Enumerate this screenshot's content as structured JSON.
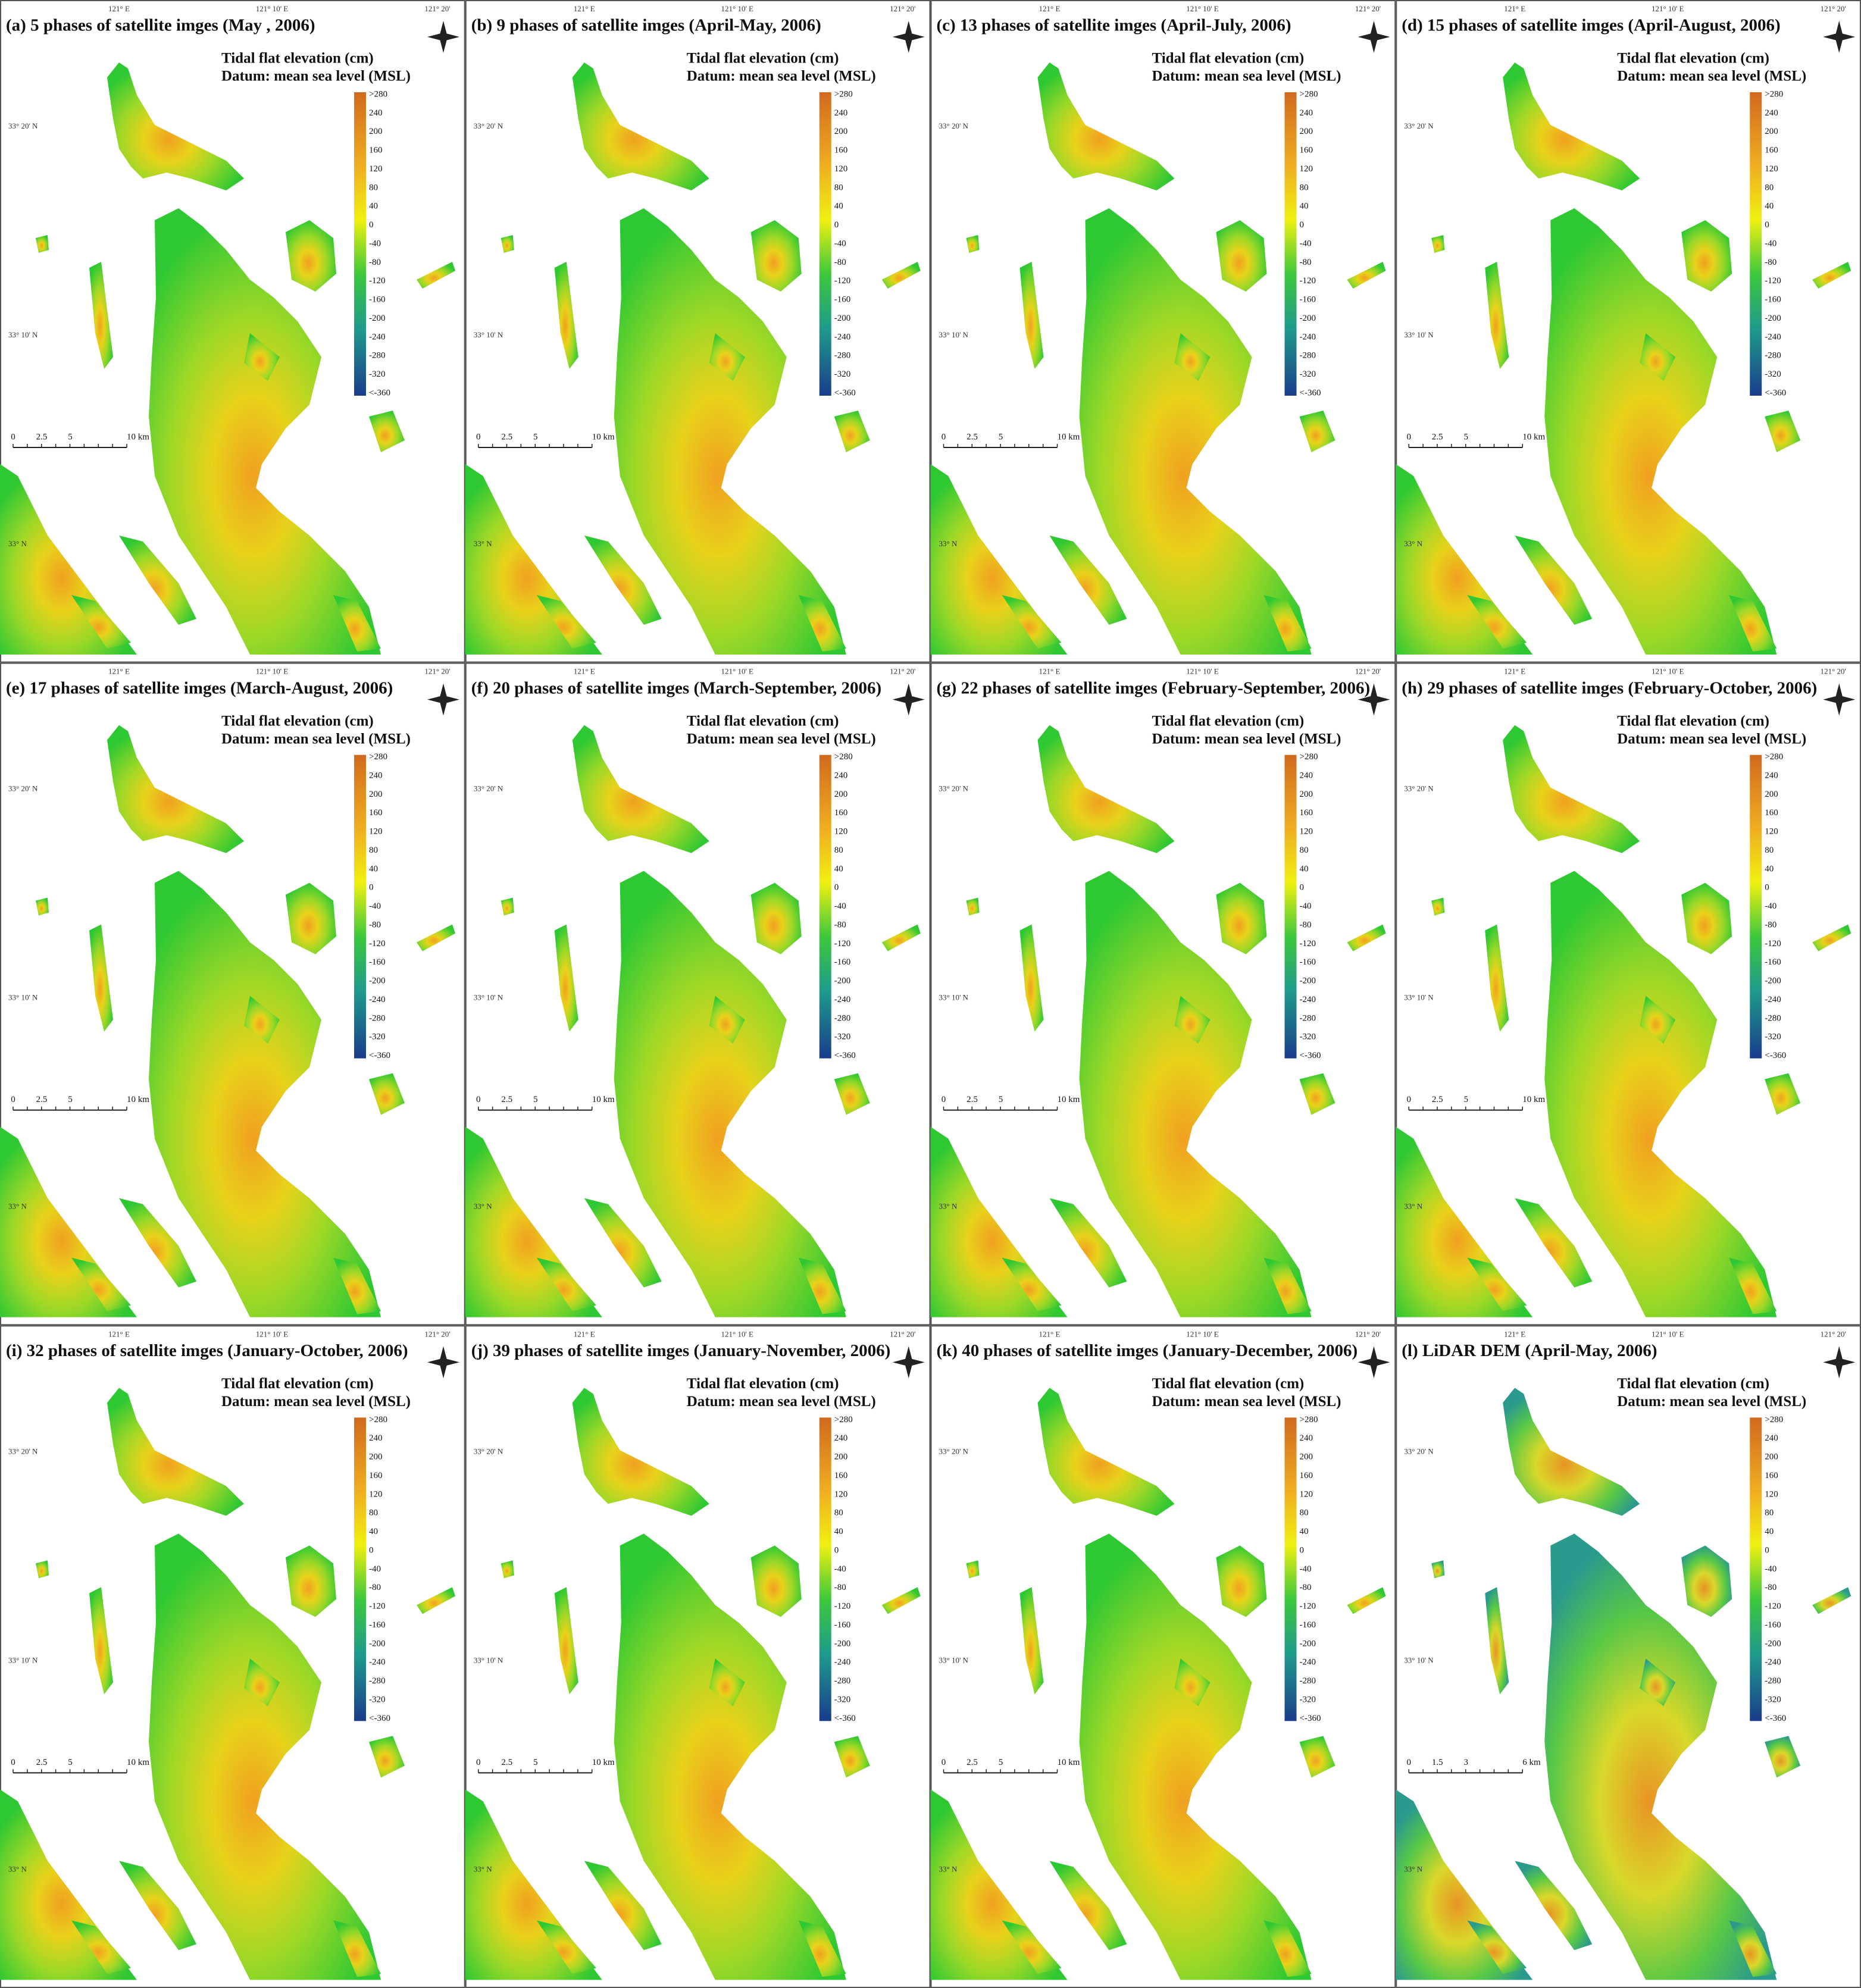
{
  "legend": {
    "title": "Tidal flat elevation (cm)",
    "datum": "Datum: mean sea level (MSL)",
    "ticks": [
      {
        "value": 280,
        "label": ">280"
      },
      240,
      200,
      160,
      120,
      80,
      40,
      0,
      -40,
      -80,
      -120,
      -160,
      -200,
      -240,
      -280,
      -320,
      {
        "value": -360,
        "label": "<-360"
      }
    ]
  },
  "coordinates": {
    "lon": [
      "121° E",
      "121° 10' E",
      "121° 20'"
    ],
    "lat": [
      "33° 20' N",
      "33° 10' N",
      "33° N"
    ]
  },
  "panels": [
    {
      "title": "(a) 5 phases of satellite imges (May , 2006)",
      "scale": [
        "0",
        "2.5",
        "5",
        "10 km"
      ]
    },
    {
      "title": "(b) 9 phases of satellite imges (April-May, 2006)",
      "scale": [
        "0",
        "2.5",
        "5",
        "10 km"
      ]
    },
    {
      "title": "(c) 13 phases of satellite imges (April-July, 2006)",
      "scale": [
        "0",
        "2.5",
        "5",
        "10 km"
      ]
    },
    {
      "title": "(d) 15 phases of satellite imges (April-August, 2006)",
      "scale": [
        "0",
        "2.5",
        "5",
        "10 km"
      ]
    },
    {
      "title": "(e) 17 phases of satellite imges (March-August, 2006)",
      "scale": [
        "0",
        "2.5",
        "5",
        "10 km"
      ]
    },
    {
      "title": "(f) 20 phases of satellite imges (March-September, 2006)",
      "scale": [
        "0",
        "2.5",
        "5",
        "10 km"
      ]
    },
    {
      "title": "(g) 22 phases of satellite imges (February-September, 2006)",
      "scale": [
        "0",
        "2.5",
        "5",
        "10 km"
      ]
    },
    {
      "title": "(h) 29 phases of satellite imges (February-October, 2006)",
      "scale": [
        "0",
        "2.5",
        "5",
        "10 km"
      ]
    },
    {
      "title": "(i) 32 phases of satellite imges (January-October, 2006)",
      "scale": [
        "0",
        "2.5",
        "5",
        "10 km"
      ]
    },
    {
      "title": "(j) 39 phases of satellite imges (January-November, 2006)",
      "scale": [
        "0",
        "2.5",
        "5",
        "10 km"
      ]
    },
    {
      "title": "(k) 40 phases of satellite imges (January-December, 2006)",
      "scale": [
        "0",
        "2.5",
        "5",
        "10 km"
      ]
    },
    {
      "title": "(l) LiDAR DEM (April-May, 2006)",
      "scale": [
        "0",
        "1.5",
        "3",
        "6 km"
      ]
    }
  ]
}
